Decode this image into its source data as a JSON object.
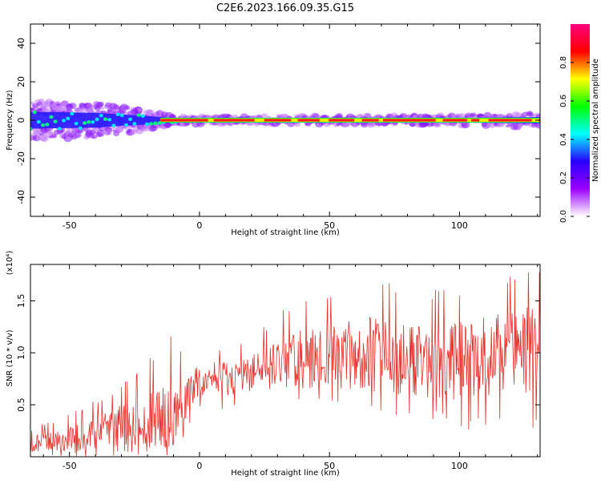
{
  "title": "C2E6.2023.166.09.35.G15",
  "colorbar": {
    "label": "Normalized spectral amplitude",
    "ticks": [
      "0.0",
      "0.2",
      "0.4",
      "0.6",
      "0.8"
    ],
    "tick_values": [
      0.0,
      0.2,
      0.4,
      0.6,
      0.8
    ],
    "colors": [
      "#ffffff",
      "#9b00ff",
      "#2a00ff",
      "#00ffff",
      "#00ff00",
      "#ffff00",
      "#ff0000",
      "#ff0080"
    ]
  },
  "chart_data": [
    {
      "type": "heatmap",
      "xlabel": "Height of straight line (km)",
      "ylabel": "Frequency (Hz)",
      "xlim": [
        -65,
        131
      ],
      "ylim": [
        -50,
        50
      ],
      "x_ticks": [
        -50,
        0,
        50,
        100
      ],
      "y_ticks": [
        -40,
        -20,
        0,
        20,
        40
      ],
      "x_tick_labels": [
        "-50",
        "0",
        "50",
        "100"
      ],
      "y_tick_labels": [
        "-40",
        "-20",
        "0",
        "20",
        "40"
      ],
      "band_center_hz": 0,
      "band_halfwidth_hz": [
        [
          -65,
          8
        ],
        [
          -40,
          7
        ],
        [
          -20,
          4
        ],
        [
          -10,
          2
        ],
        [
          0,
          1.5
        ],
        [
          95,
          2
        ],
        [
          131,
          3
        ]
      ]
    },
    {
      "type": "line",
      "xlabel": "Height of straight line (km)",
      "ylabel": "SNR (10 * v/v)",
      "y_multiplier": "(x10⁴)",
      "xlim": [
        -65,
        131
      ],
      "ylim": [
        0,
        18500
      ],
      "x_ticks": [
        -50,
        0,
        50,
        100
      ],
      "y_ticks": [
        5000,
        10000,
        15000
      ],
      "x_tick_labels": [
        "-50",
        "0",
        "50",
        "100"
      ],
      "y_tick_labels": [
        "0.5",
        "1.0",
        "1.5"
      ],
      "series": [
        {
          "color": "#e8302b",
          "x": [
            -65,
            -60,
            -55,
            -50,
            -45,
            -40,
            -35,
            -30,
            -25,
            -20,
            -15,
            -10,
            -5,
            0,
            5,
            10,
            15,
            20,
            25,
            30,
            35,
            40,
            45,
            50,
            55,
            60,
            65,
            70,
            75,
            80,
            85,
            90,
            95,
            100,
            105,
            110,
            115,
            120,
            125,
            130
          ],
          "y": [
            1200,
            1400,
            1500,
            1700,
            1900,
            2300,
            2600,
            3000,
            3200,
            3400,
            3600,
            4200,
            5600,
            7000,
            7600,
            7500,
            7800,
            8200,
            8500,
            9000,
            9200,
            9400,
            9600,
            9500,
            9700,
            9800,
            10000,
            9600,
            9400,
            9200,
            9000,
            9200,
            9400,
            9100,
            9300,
            9600,
            9800,
            10200,
            10400,
            10500
          ],
          "min": [
            0,
            0,
            0,
            0,
            0,
            0,
            0,
            0,
            0,
            0,
            0,
            0,
            2000,
            4500,
            4000,
            4500,
            5000,
            6000,
            6500,
            6000,
            5500,
            5500,
            5000,
            5000,
            4500,
            4500,
            4500,
            4000,
            4000,
            4000,
            3500,
            3500,
            3500,
            2000,
            2500,
            3000,
            3000,
            3500,
            2500,
            2500
          ],
          "max": [
            2600,
            3300,
            3400,
            4200,
            4800,
            5500,
            6000,
            7200,
            8000,
            9000,
            11500,
            11800,
            9000,
            8500,
            10000,
            10500,
            11000,
            11800,
            12500,
            13500,
            15000,
            15800,
            15500,
            16000,
            16500,
            17000,
            17000,
            17200,
            17000,
            16500,
            16000,
            16000,
            16500,
            16500,
            16500,
            17000,
            17200,
            17500,
            18000,
            18200
          ]
        }
      ]
    }
  ]
}
